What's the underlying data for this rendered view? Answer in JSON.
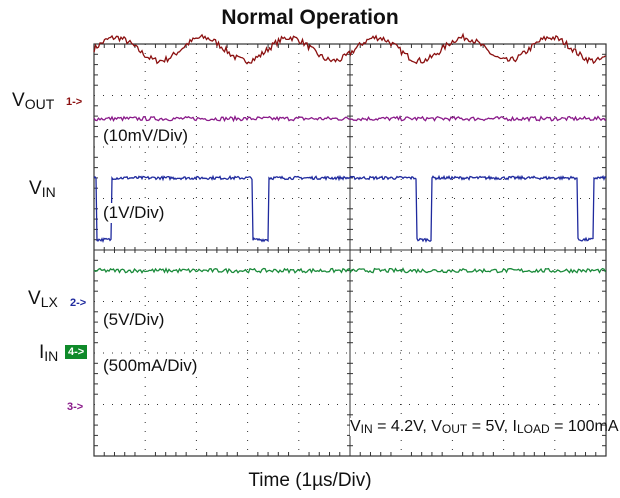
{
  "chart_data": {
    "type": "line",
    "title": "Normal Operation",
    "xlabel": "Time (1µs/Div)",
    "x_divisions": 10,
    "y_divisions": 8,
    "grid": true,
    "series": [
      {
        "name": "VOUT",
        "channel": "1->",
        "scale": "(10mV/Div)",
        "color": "#8b1010",
        "waveform": "ripple",
        "baseline_div": 7.9,
        "ripple_div": 0.25,
        "period_div": 1.7
      },
      {
        "name": "VIN",
        "channel": "",
        "scale": "(1V/Div)",
        "color": "#8a1a8a",
        "waveform": "dc",
        "level_div": 6.55
      },
      {
        "name": "VLX",
        "channel": "2->",
        "scale": "(5V/Div)",
        "color": "#1f2a9e",
        "waveform": "switching",
        "high_div": 5.4,
        "low_div": 4.2,
        "pulse_starts_div": [
          0.05,
          3.1,
          6.3,
          9.45
        ],
        "pulse_width_div": 0.3
      },
      {
        "name": "IIN",
        "channel": "4->",
        "scale": "(500mA/Div)",
        "color": "#1a8a3a",
        "waveform": "dc",
        "level_div": 3.6
      }
    ],
    "extra_markers": [
      {
        "channel": "3->",
        "color": "#8a1a8a",
        "level_div": 2.0
      }
    ],
    "condition": "VIN = 4.2V, VOUT = 5V, ILOAD = 100mA"
  },
  "labels": {
    "title": "Normal Operation",
    "xlabel": "Time (1µs/Div)",
    "vout_main": "V",
    "vout_sub": "OUT",
    "vin_main": "V",
    "vin_sub": "IN",
    "vlx_main": "V",
    "vlx_sub": "LX",
    "iin_main": "I",
    "iin_sub": "IN",
    "marker_1": "1->",
    "marker_2": "2->",
    "marker_3": "3->",
    "marker_4": "4->",
    "scale_vout": "(10mV/Div)",
    "scale_vin": "(1V/Div)",
    "scale_vlx": "(5V/Div)",
    "scale_iin": "(500mA/Div)",
    "cond_vin_sub": "IN",
    "cond_vin_val": " = 4.2V, V",
    "cond_vout_sub": "OUT",
    "cond_vout_val": " = 5V, I",
    "cond_iload_sub": "LOAD",
    "cond_iload_val": " = 100mA",
    "cond_v": "V"
  },
  "colors": {
    "grid": "#333333",
    "vout": "#8b1010",
    "vin": "#8a1a8a",
    "vlx": "#1f2a9e",
    "iin": "#1a8a3a"
  }
}
